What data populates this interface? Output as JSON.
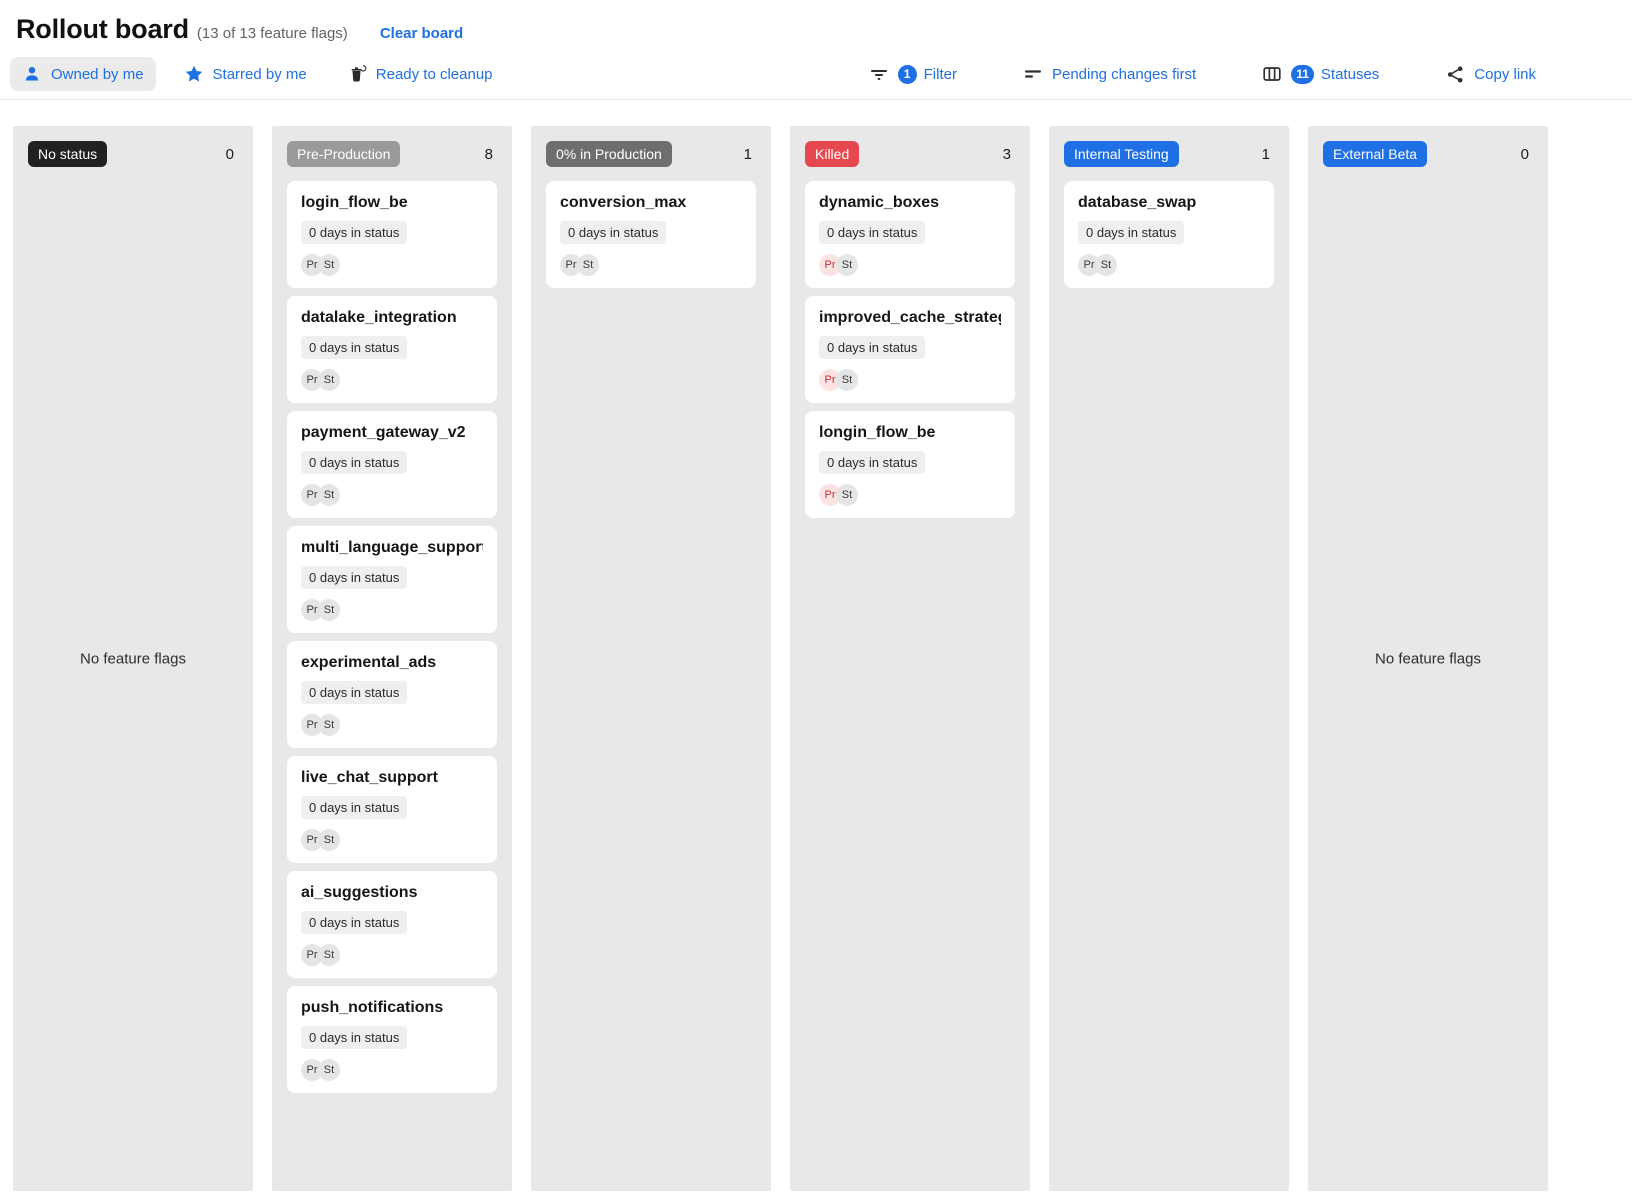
{
  "colors": {
    "accent_blue": "#1f6fe5",
    "killed_red": "#e5494f",
    "no_status_badge": "#212121",
    "pre_production_badge": "#9a9a9a",
    "zero_production_badge": "#6e6e6e",
    "column_background": "#e8e8e8"
  },
  "header": {
    "title": "Rollout board",
    "subtitle": "(13 of 13 feature flags)",
    "clear_board": "Clear board"
  },
  "toolbar": {
    "owned_by_me": "Owned by me",
    "starred_by_me": "Starred by me",
    "ready_to_cleanup": "Ready to cleanup",
    "filter": "Filter",
    "filter_count": "1",
    "sort": "Pending changes first",
    "statuses": "Statuses",
    "statuses_count": "11",
    "copy_link": "Copy link",
    "icons": [
      "person-icon",
      "star-icon",
      "cleanup-icon",
      "filter-icon",
      "sort-icon",
      "columns-icon",
      "share-icon"
    ]
  },
  "board": {
    "empty_label": "No feature flags",
    "columns": [
      {
        "name": "No status",
        "count": "0",
        "badge_color": "#212121",
        "cards": []
      },
      {
        "name": "Pre-Production",
        "count": "8",
        "badge_color": "#9a9a9a",
        "cards": [
          {
            "title": "login_flow_be",
            "days": "0 days in status",
            "chips": [
              {
                "label": "Pr",
                "variant": "gray"
              },
              {
                "label": "St",
                "variant": "gray"
              }
            ]
          },
          {
            "title": "datalake_integration",
            "days": "0 days in status",
            "chips": [
              {
                "label": "Pr",
                "variant": "gray"
              },
              {
                "label": "St",
                "variant": "gray"
              }
            ]
          },
          {
            "title": "payment_gateway_v2",
            "days": "0 days in status",
            "chips": [
              {
                "label": "Pr",
                "variant": "gray"
              },
              {
                "label": "St",
                "variant": "gray"
              }
            ]
          },
          {
            "title": "multi_language_support",
            "days": "0 days in status",
            "chips": [
              {
                "label": "Pr",
                "variant": "gray"
              },
              {
                "label": "St",
                "variant": "gray"
              }
            ]
          },
          {
            "title": "experimental_ads",
            "days": "0 days in status",
            "chips": [
              {
                "label": "Pr",
                "variant": "gray"
              },
              {
                "label": "St",
                "variant": "gray"
              }
            ]
          },
          {
            "title": "live_chat_support",
            "days": "0 days in status",
            "chips": [
              {
                "label": "Pr",
                "variant": "gray"
              },
              {
                "label": "St",
                "variant": "gray"
              }
            ]
          },
          {
            "title": "ai_suggestions",
            "days": "0 days in status",
            "chips": [
              {
                "label": "Pr",
                "variant": "gray"
              },
              {
                "label": "St",
                "variant": "gray"
              }
            ]
          },
          {
            "title": "push_notifications",
            "days": "0 days in status",
            "chips": [
              {
                "label": "Pr",
                "variant": "gray"
              },
              {
                "label": "St",
                "variant": "gray"
              }
            ]
          }
        ]
      },
      {
        "name": "0% in Production",
        "count": "1",
        "badge_color": "#6e6e6e",
        "cards": [
          {
            "title": "conversion_max",
            "days": "0 days in status",
            "chips": [
              {
                "label": "Pr",
                "variant": "gray"
              },
              {
                "label": "St",
                "variant": "gray"
              }
            ]
          }
        ]
      },
      {
        "name": "Killed",
        "count": "3",
        "badge_color": "#e5494f",
        "cards": [
          {
            "title": "dynamic_boxes",
            "days": "0 days in status",
            "chips": [
              {
                "label": "Pr",
                "variant": "red"
              },
              {
                "label": "St",
                "variant": "gray"
              }
            ]
          },
          {
            "title": "improved_cache_strategy",
            "days": "0 days in status",
            "chips": [
              {
                "label": "Pr",
                "variant": "red"
              },
              {
                "label": "St",
                "variant": "gray"
              }
            ]
          },
          {
            "title": "longin_flow_be",
            "days": "0 days in status",
            "chips": [
              {
                "label": "Pr",
                "variant": "red"
              },
              {
                "label": "St",
                "variant": "gray"
              }
            ]
          }
        ]
      },
      {
        "name": "Internal Testing",
        "count": "1",
        "badge_color": "#1f6fe5",
        "cards": [
          {
            "title": "database_swap",
            "days": "0 days in status",
            "chips": [
              {
                "label": "Pr",
                "variant": "gray"
              },
              {
                "label": "St",
                "variant": "gray"
              }
            ]
          }
        ]
      },
      {
        "name": "External Beta",
        "count": "0",
        "badge_color": "#1f6fe5",
        "cards": []
      }
    ]
  }
}
